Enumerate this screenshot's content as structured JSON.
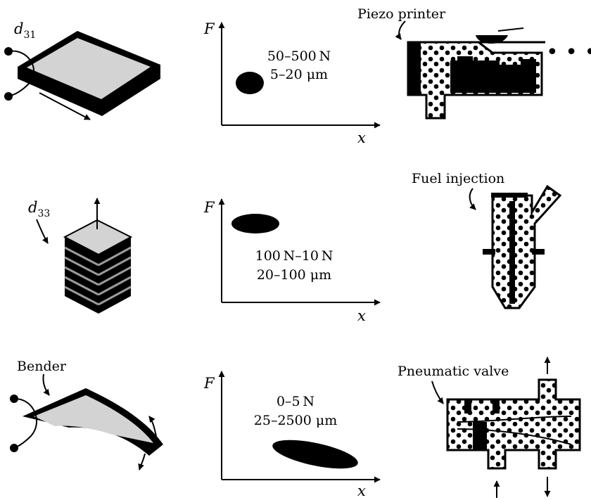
{
  "rows": [
    {
      "actuator": {
        "label": "d",
        "label_sub": "31"
      },
      "plot": {
        "y_axis": "F",
        "x_axis": "x",
        "force": "50–500 N",
        "displacement": "5–20 μm"
      },
      "application": {
        "label": "Piezo printer",
        "more": "• • •"
      }
    },
    {
      "actuator": {
        "label": "d",
        "label_sub": "33"
      },
      "plot": {
        "y_axis": "F",
        "x_axis": "x",
        "force": "100 N–10 N",
        "displacement": "20–100 μm"
      },
      "application": {
        "label": "Fuel injection"
      }
    },
    {
      "actuator": {
        "label": "Bender"
      },
      "plot": {
        "y_axis": "F",
        "x_axis": "x",
        "force": "0–5 N",
        "displacement": "25–2500 μm"
      },
      "application": {
        "label": "Pneumatic valve"
      }
    }
  ],
  "colors": {
    "ink": "#000000",
    "face": "#d3d3d3",
    "layer": "#9a9a9a"
  }
}
